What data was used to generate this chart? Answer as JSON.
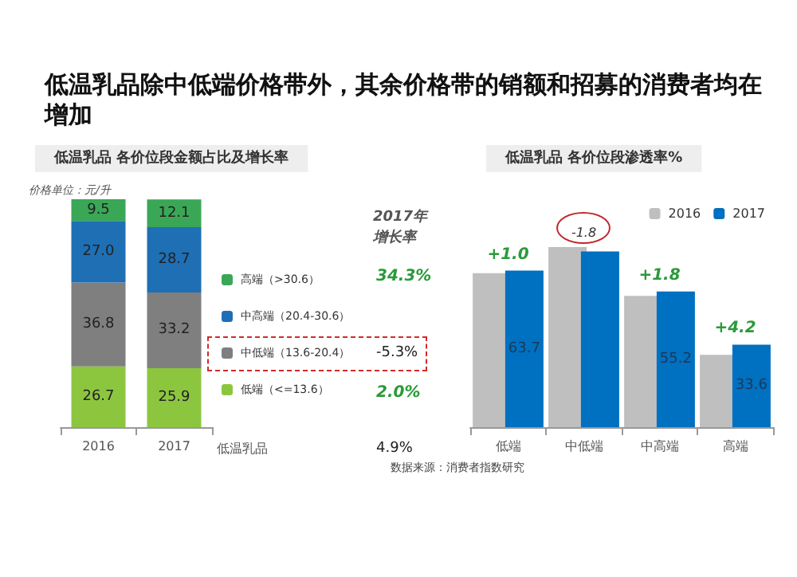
{
  "chart_data": [
    {
      "type": "bar",
      "title": "低温乳品除中低端价格带外，其余价格带的销额和招募的消费者均在增加",
      "subtitle": "低温乳品 各价位段金额占比及增长率",
      "categories": [
        "2016",
        "2017"
      ],
      "stacked": true,
      "legend": "right",
      "series": [
        {
          "name": "低端（<=13.6）",
          "color": "#8cc63f",
          "values": [
            26.7,
            25.9
          ],
          "value_labels": [
            "26.7",
            "25.9"
          ]
        },
        {
          "name": "中低端（13.6-20.4）",
          "color": "#7f7f7f",
          "values": [
            36.8,
            33.2
          ],
          "value_labels": [
            "36.8",
            "33.2"
          ]
        },
        {
          "name": "中高端（20.4-30.6）",
          "color": "#1f6fb5",
          "values": [
            27.0,
            28.7
          ],
          "value_labels": [
            "27.0",
            "28.7"
          ]
        },
        {
          "name": "高端（>30.6）",
          "color": "#3aa757",
          "values": [
            9.5,
            12.1
          ],
          "value_labels": [
            "9.5",
            "12.1"
          ]
        }
      ],
      "annotations": [
        "价格单位：元/升",
        "2017年增长率",
        "34.3%",
        "-5.3%",
        "2.0%",
        "低温乳品",
        "4.9%"
      ]
    },
    {
      "type": "bar",
      "title": "低温乳品 各价位段渗透率%",
      "categories": [
        "低端",
        "中低端",
        "中高端",
        "高端"
      ],
      "legend": "top right",
      "series": [
        {
          "name": "2016",
          "color": "#bfbfbf",
          "values": [
            62.7,
            73.3,
            53.4,
            29.4
          ]
        },
        {
          "name": "2017",
          "color": "#0070c0",
          "values": [
            63.7,
            71.5,
            55.2,
            33.6
          ],
          "value_labels": [
            "63.7",
            null,
            "55.2",
            "33.6"
          ]
        }
      ],
      "annotations": [
        {
          "text": "+1.0",
          "x": "低端",
          "y": 63.7
        },
        {
          "text": "-1.8",
          "x": "中低端",
          "y": 73.3
        },
        {
          "text": "+1.8",
          "x": "中高端",
          "y": 55.2
        },
        {
          "text": "+4.2",
          "x": "高端",
          "y": 33.6
        },
        "数据来源：消费者指数研究"
      ]
    }
  ]
}
